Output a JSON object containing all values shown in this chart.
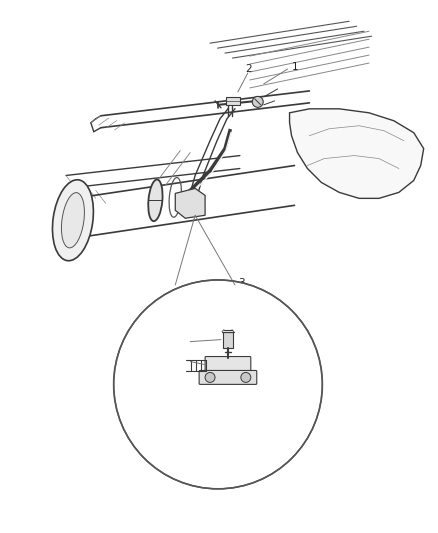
{
  "bg_color": "#ffffff",
  "lc": "#3a3a3a",
  "lc_light": "#888888",
  "lc_mid": "#555555",
  "fig_width": 4.38,
  "fig_height": 5.33,
  "dpi": 100,
  "label_fs": 7.5,
  "label_color": "#222222"
}
